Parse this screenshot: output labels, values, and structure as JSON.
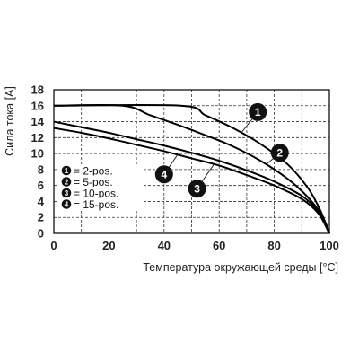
{
  "chart_data": {
    "type": "line",
    "title": "",
    "xlabel": "Температура окружающей среды [°C]",
    "ylabel": "Сила тока [A]",
    "xlim": [
      0,
      100
    ],
    "ylim": [
      0,
      18
    ],
    "x_ticks": [
      "0",
      "20",
      "40",
      "60",
      "80",
      "100"
    ],
    "y_ticks": [
      "0",
      "2",
      "4",
      "6",
      "8",
      "10",
      "12",
      "14",
      "16",
      "18"
    ],
    "grid": true,
    "legend_position": "left",
    "series": [
      {
        "name": "1 = 2-pos.",
        "badge": "1",
        "color": "#000000",
        "points": [
          [
            0,
            16
          ],
          [
            46,
            16
          ],
          [
            55,
            14.8
          ],
          [
            65,
            13.2
          ],
          [
            75,
            11.2
          ],
          [
            85,
            8.6
          ],
          [
            92,
            5.8
          ],
          [
            96,
            3.4
          ],
          [
            99,
            1.0
          ],
          [
            100,
            0
          ]
        ]
      },
      {
        "name": "2 = 5-pos.",
        "badge": "2",
        "color": "#000000",
        "points": [
          [
            0,
            16
          ],
          [
            25,
            16
          ],
          [
            35,
            14.8
          ],
          [
            45,
            13.6
          ],
          [
            55,
            12.3
          ],
          [
            65,
            10.9
          ],
          [
            75,
            9.1
          ],
          [
            85,
            6.8
          ],
          [
            92,
            4.6
          ],
          [
            97,
            2.4
          ],
          [
            100,
            0
          ]
        ]
      },
      {
        "name": "3 = 10-pos.",
        "badge": "3",
        "color": "#000000",
        "points": [
          [
            0,
            14
          ],
          [
            10,
            13.3
          ],
          [
            20,
            12.6
          ],
          [
            30,
            11.8
          ],
          [
            40,
            11.0
          ],
          [
            50,
            10.1
          ],
          [
            60,
            9.1
          ],
          [
            70,
            7.9
          ],
          [
            80,
            6.5
          ],
          [
            90,
            4.7
          ],
          [
            96,
            2.7
          ],
          [
            100,
            0
          ]
        ]
      },
      {
        "name": "4 = 15-pos.",
        "badge": "4",
        "color": "#000000",
        "points": [
          [
            0,
            13.2
          ],
          [
            10,
            12.6
          ],
          [
            20,
            11.9
          ],
          [
            30,
            11.1
          ],
          [
            40,
            10.3
          ],
          [
            50,
            9.4
          ],
          [
            60,
            8.5
          ],
          [
            70,
            7.3
          ],
          [
            80,
            6.0
          ],
          [
            90,
            4.3
          ],
          [
            96,
            2.5
          ],
          [
            100,
            0
          ]
        ]
      }
    ],
    "legend_entries": [
      {
        "badge": "1",
        "text": "= 2-pos."
      },
      {
        "badge": "2",
        "text": "= 5-pos."
      },
      {
        "badge": "3",
        "text": "= 10-pos."
      },
      {
        "badge": "4",
        "text": "= 15-pos."
      }
    ],
    "annotations": [
      {
        "badge": "1",
        "x": 74,
        "y": 15.2,
        "target": [
          68,
          12.6
        ]
      },
      {
        "badge": "2",
        "x": 82,
        "y": 10.1,
        "target": [
          77,
          8.6
        ]
      },
      {
        "badge": "4",
        "x": 40,
        "y": 7.4,
        "target": [
          45,
          9.9
        ]
      },
      {
        "badge": "3",
        "x": 52,
        "y": 5.6,
        "target": [
          58,
          8.6
        ]
      }
    ]
  }
}
